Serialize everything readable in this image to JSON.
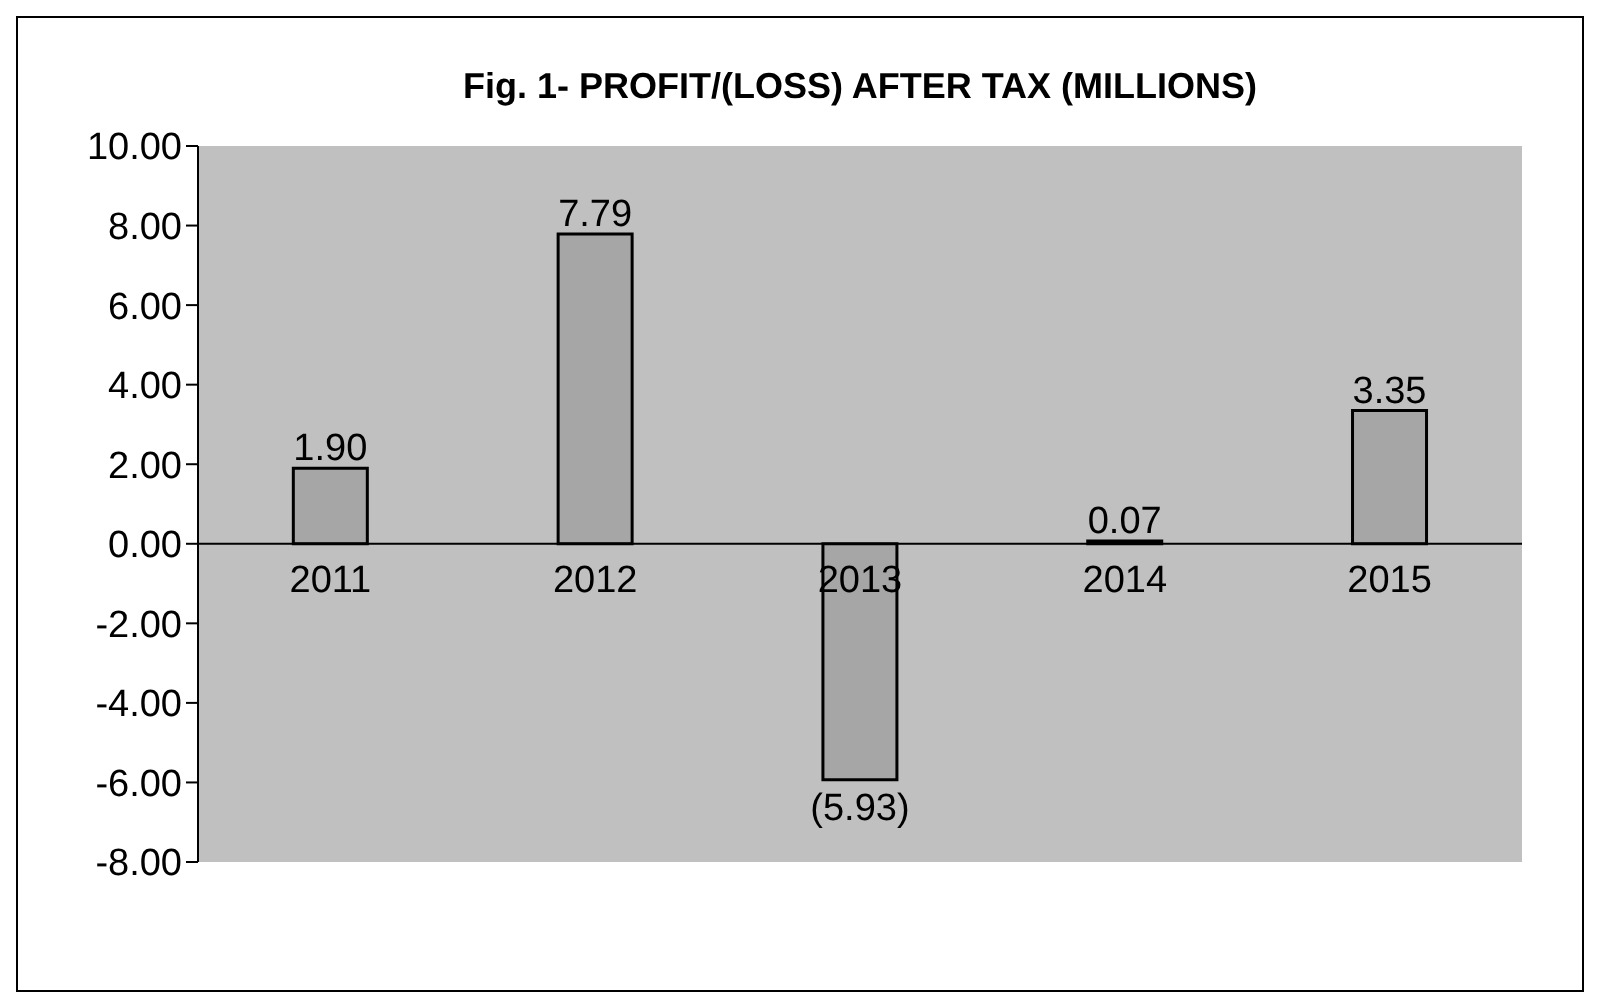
{
  "chart_data": {
    "type": "bar",
    "title": "Fig. 1- PROFIT/(LOSS) AFTER TAX (MILLIONS)",
    "categories": [
      "2011",
      "2012",
      "2013",
      "2014",
      "2015"
    ],
    "values": [
      1.9,
      7.79,
      -5.93,
      0.07,
      3.35
    ],
    "value_labels": [
      "1.90",
      "7.79",
      "(5.93)",
      "0.07",
      "3.35"
    ],
    "color": "#a6a6a6",
    "ylim": [
      -8,
      10
    ],
    "yticks": [
      {
        "value": -8,
        "label": "-8.00"
      },
      {
        "value": -6,
        "label": "-6.00"
      },
      {
        "value": -4,
        "label": "-4.00"
      },
      {
        "value": -2,
        "label": "-2.00"
      },
      {
        "value": 0,
        "label": "0.00"
      },
      {
        "value": 2,
        "label": "2.00"
      },
      {
        "value": 4,
        "label": "4.00"
      },
      {
        "value": 6,
        "label": "6.00"
      },
      {
        "value": 8,
        "label": "8.00"
      },
      {
        "value": 10,
        "label": "10.00"
      }
    ],
    "grid": false,
    "legend": false
  }
}
